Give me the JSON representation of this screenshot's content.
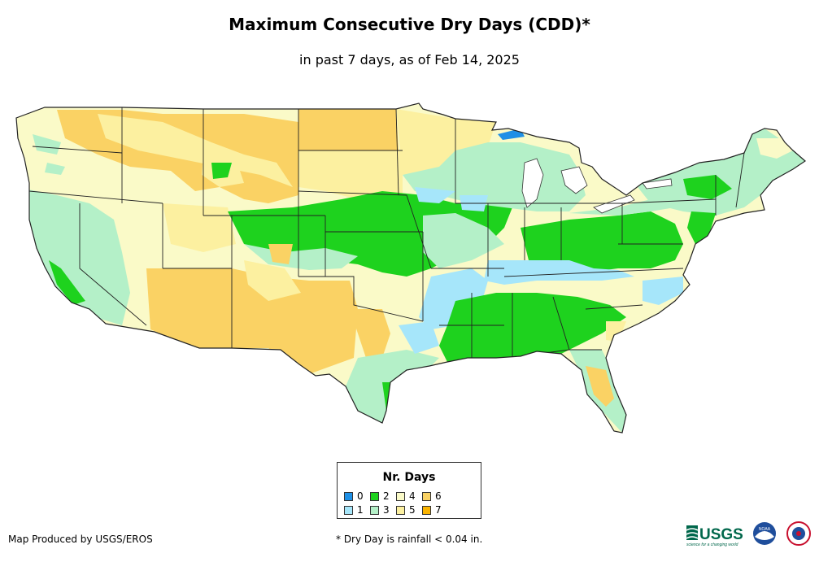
{
  "title": "Maximum Consecutive Dry Days (CDD)*",
  "subtitle": "in past 7 days, as of Feb 14, 2025",
  "legend": {
    "title": "Nr. Days",
    "items": [
      {
        "label": "0",
        "color": "#1e90e6"
      },
      {
        "label": "1",
        "color": "#a6e6fa"
      },
      {
        "label": "2",
        "color": "#1ed21e"
      },
      {
        "label": "3",
        "color": "#b4f0c8"
      },
      {
        "label": "4",
        "color": "#fafac8"
      },
      {
        "label": "5",
        "color": "#fcf0a0"
      },
      {
        "label": "6",
        "color": "#fad264"
      },
      {
        "label": "7",
        "color": "#fab400"
      }
    ]
  },
  "footer": {
    "produced_by": "Map Produced by USGS/EROS",
    "note": "* Dry Day is rainfall < 0.04 in."
  },
  "logos": {
    "usgs": "USGS",
    "usgs_tagline": "science for a changing world",
    "noaa": "NOAA"
  }
}
